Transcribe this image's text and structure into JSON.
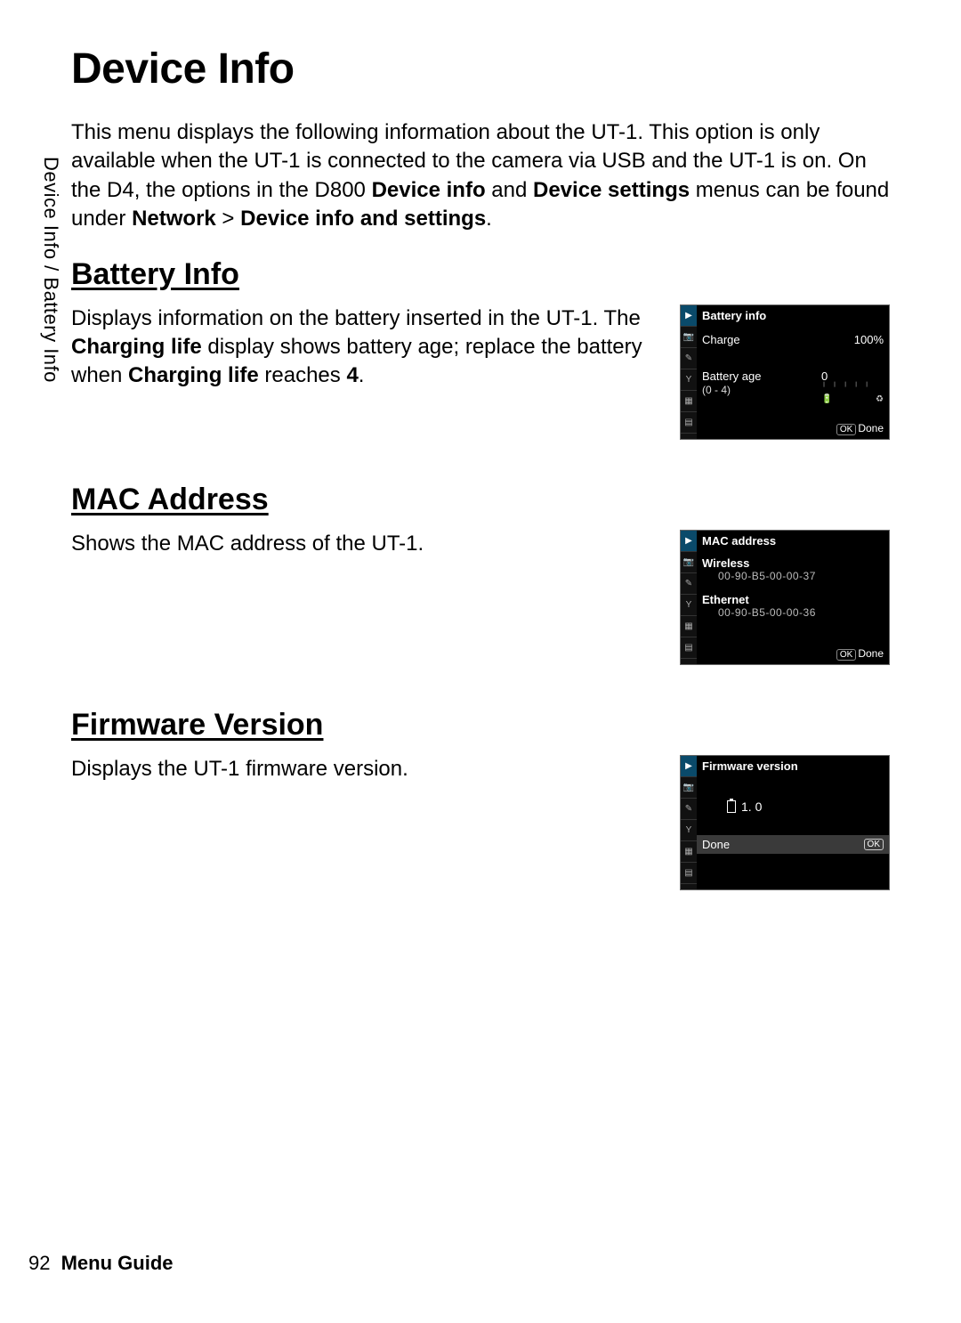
{
  "page": {
    "title": "Device Info",
    "sidebar_label": "Device Info / Battery Info",
    "page_number": "92",
    "footer_label": "Menu Guide",
    "intro_html": "This menu displays the following information about the UT-1.  This option is only available when the UT-1 is connected to the camera via USB and the UT-1 is on. On the D4, the options in the D800 <b>Device info</b> and <b>Device settings</b> menus can be found under <b>Network</b> > <b>Device info and settings</b>."
  },
  "sections": {
    "battery": {
      "heading": "Battery Info",
      "body_html": "Displays information on the battery inserted in the UT-1.  The <b>Charging life</b> display shows battery age; replace the battery when <b>Charging life</b> reaches <b>4</b>.",
      "screen": {
        "title": "Battery info",
        "charge_label": "Charge",
        "charge_value": "100%",
        "age_label": "Battery age",
        "age_sub": "(0 - 4)",
        "age_value": "0",
        "done_label": "Done",
        "ok_label": "OK"
      }
    },
    "mac": {
      "heading": "MAC Address",
      "body_html": "Shows the MAC address of the UT-1.",
      "screen": {
        "title": "MAC address",
        "wireless_label": "Wireless",
        "wireless_value": "00-90-B5-00-00-37",
        "ethernet_label": "Ethernet",
        "ethernet_value": "00-90-B5-00-00-36",
        "done_label": "Done",
        "ok_label": "OK"
      }
    },
    "fw": {
      "heading": "Firmware Version",
      "body_html": "Displays the UT-1 firmware version.",
      "screen": {
        "title": "Firmware version",
        "version_label": "L",
        "version_value": "1. 0",
        "done_label": "Done",
        "ok_label": "OK"
      }
    }
  },
  "tab_icons": [
    "▶",
    "📷",
    "✎",
    "Y",
    "▦",
    "▤"
  ]
}
